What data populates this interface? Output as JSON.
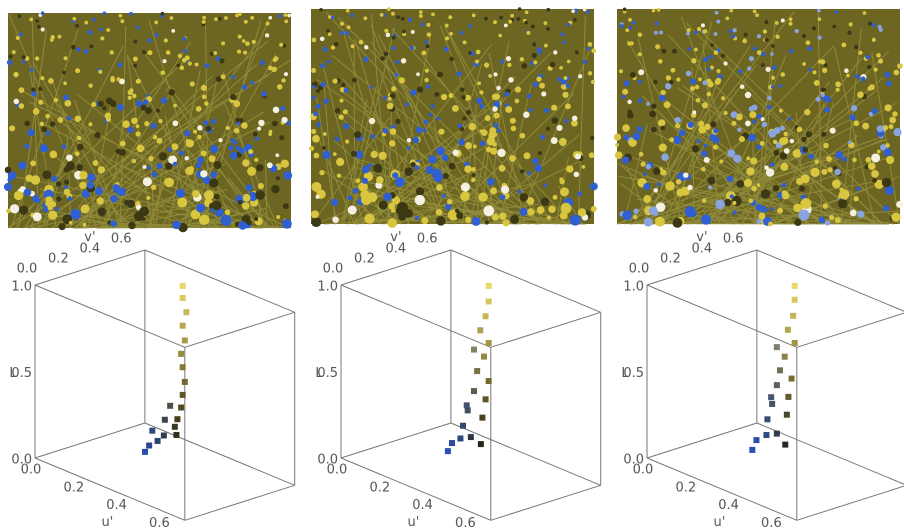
{
  "panels": [
    {
      "axes": {
        "u_label": "u'",
        "v_label": "v'",
        "l_label": "L",
        "ulim": [
          0,
          0.7
        ],
        "vlim": [
          0,
          0.7
        ],
        "llim": [
          0,
          1
        ],
        "u_ticks": [
          {
            "value": 0,
            "label": "0.0"
          },
          {
            "value": 0.2,
            "label": "0.2"
          },
          {
            "value": 0.4,
            "label": "0.4"
          },
          {
            "value": 0.6,
            "label": "0.6"
          }
        ],
        "v_ticks": [
          {
            "value": 0,
            "label": "0.0"
          },
          {
            "value": 0.2,
            "label": "0.2"
          },
          {
            "value": 0.4,
            "label": "0.4"
          },
          {
            "value": 0.6,
            "label": "0.6"
          }
        ],
        "l_ticks": [
          {
            "value": 0,
            "label": "0.0"
          },
          {
            "value": 0.5,
            "label": "0.5"
          },
          {
            "value": 1,
            "label": "1.0"
          }
        ]
      },
      "points": [
        [
          0.25,
          0.6,
          0.95
        ],
        [
          0.25,
          0.6,
          0.88
        ],
        [
          0.26,
          0.61,
          0.8
        ],
        [
          0.25,
          0.6,
          0.72
        ],
        [
          0.26,
          0.6,
          0.64
        ],
        [
          0.25,
          0.59,
          0.56
        ],
        [
          0.25,
          0.6,
          0.48
        ],
        [
          0.26,
          0.6,
          0.4
        ],
        [
          0.25,
          0.6,
          0.32
        ],
        [
          0.25,
          0.59,
          0.25
        ],
        [
          0.24,
          0.58,
          0.18
        ],
        [
          0.25,
          0.55,
          0.15
        ],
        [
          0.24,
          0.5,
          0.2
        ],
        [
          0.25,
          0.48,
          0.12
        ],
        [
          0.25,
          0.44,
          0.1
        ],
        [
          0.24,
          0.4,
          0.08
        ],
        [
          0.25,
          0.36,
          0.06
        ],
        [
          0.24,
          0.42,
          0.16
        ],
        [
          0.25,
          0.52,
          0.28
        ],
        [
          0.25,
          0.56,
          0.1
        ]
      ]
    },
    {
      "axes": {
        "u_label": "u'",
        "v_label": "v'",
        "l_label": "L",
        "ulim": [
          0,
          0.7
        ],
        "vlim": [
          0,
          0.7
        ],
        "llim": [
          0,
          1
        ],
        "u_ticks": [
          {
            "value": 0,
            "label": "0.0"
          },
          {
            "value": 0.2,
            "label": "0.2"
          },
          {
            "value": 0.4,
            "label": "0.4"
          },
          {
            "value": 0.6,
            "label": "0.6"
          }
        ],
        "v_ticks": [
          {
            "value": 0,
            "label": "0.0"
          },
          {
            "value": 0.2,
            "label": "0.2"
          },
          {
            "value": 0.4,
            "label": "0.4"
          },
          {
            "value": 0.6,
            "label": "0.6"
          }
        ],
        "l_ticks": [
          {
            "value": 0,
            "label": "0.0"
          },
          {
            "value": 0.5,
            "label": "0.5"
          },
          {
            "value": 1,
            "label": "1.0"
          }
        ]
      },
      "points": [
        [
          0.25,
          0.6,
          0.95
        ],
        [
          0.25,
          0.6,
          0.86
        ],
        [
          0.25,
          0.58,
          0.78
        ],
        [
          0.24,
          0.56,
          0.7
        ],
        [
          0.25,
          0.6,
          0.62
        ],
        [
          0.25,
          0.57,
          0.55
        ],
        [
          0.24,
          0.54,
          0.47
        ],
        [
          0.25,
          0.6,
          0.4
        ],
        [
          0.24,
          0.52,
          0.36
        ],
        [
          0.25,
          0.58,
          0.3
        ],
        [
          0.24,
          0.48,
          0.26
        ],
        [
          0.25,
          0.56,
          0.2
        ],
        [
          0.24,
          0.45,
          0.18
        ],
        [
          0.25,
          0.42,
          0.12
        ],
        [
          0.24,
          0.38,
          0.1
        ],
        [
          0.25,
          0.34,
          0.07
        ],
        [
          0.24,
          0.5,
          0.1
        ],
        [
          0.25,
          0.46,
          0.3
        ],
        [
          0.24,
          0.52,
          0.6
        ],
        [
          0.25,
          0.55,
          0.05
        ]
      ]
    },
    {
      "axes": {
        "u_label": "u'",
        "v_label": "v'",
        "l_label": "L",
        "ulim": [
          0,
          0.7
        ],
        "vlim": [
          0,
          0.7
        ],
        "llim": [
          0,
          1
        ],
        "u_ticks": [
          {
            "value": 0,
            "label": "0.0"
          },
          {
            "value": 0.2,
            "label": "0.2"
          },
          {
            "value": 0.4,
            "label": "0.4"
          },
          {
            "value": 0.6,
            "label": "0.6"
          }
        ],
        "v_ticks": [
          {
            "value": 0,
            "label": "0.0"
          },
          {
            "value": 0.2,
            "label": "0.2"
          },
          {
            "value": 0.4,
            "label": "0.4"
          },
          {
            "value": 0.6,
            "label": "0.6"
          }
        ],
        "l_ticks": [
          {
            "value": 0,
            "label": "0.0"
          },
          {
            "value": 0.5,
            "label": "0.5"
          },
          {
            "value": 1,
            "label": "1.0"
          }
        ]
      },
      "points": [
        [
          0.25,
          0.6,
          0.95
        ],
        [
          0.25,
          0.6,
          0.87
        ],
        [
          0.25,
          0.59,
          0.78
        ],
        [
          0.24,
          0.57,
          0.7
        ],
        [
          0.25,
          0.6,
          0.62
        ],
        [
          0.24,
          0.55,
          0.55
        ],
        [
          0.24,
          0.52,
          0.48
        ],
        [
          0.25,
          0.58,
          0.42
        ],
        [
          0.24,
          0.5,
          0.4
        ],
        [
          0.25,
          0.56,
          0.32
        ],
        [
          0.24,
          0.47,
          0.3
        ],
        [
          0.25,
          0.55,
          0.22
        ],
        [
          0.24,
          0.44,
          0.22
        ],
        [
          0.25,
          0.42,
          0.14
        ],
        [
          0.24,
          0.37,
          0.12
        ],
        [
          0.25,
          0.33,
          0.08
        ],
        [
          0.24,
          0.5,
          0.12
        ],
        [
          0.25,
          0.45,
          0.35
        ],
        [
          0.24,
          0.5,
          0.62
        ],
        [
          0.25,
          0.54,
          0.05
        ]
      ]
    }
  ]
}
